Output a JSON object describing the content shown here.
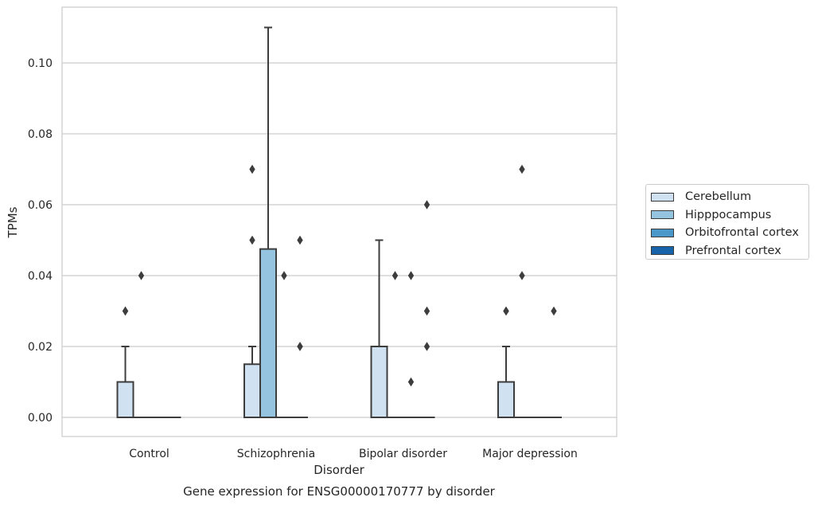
{
  "chart_data": {
    "type": "boxplot",
    "caption": "Gene expression for ENSG00000170777 by disorder",
    "xlabel": "Disorder",
    "ylabel": "TPMs",
    "ylim": [
      -0.005,
      0.116
    ],
    "yticks": [
      "0.00",
      "0.02",
      "0.04",
      "0.06",
      "0.08",
      "0.10"
    ],
    "grid": true,
    "legend_position": "right",
    "categories": [
      "Control",
      "Schizophrenia",
      "Bipolar disorder",
      "Major depression"
    ],
    "series": [
      {
        "name": "Cerebellum",
        "color": "#d0e1f2",
        "boxes": [
          {
            "q1": 0.0,
            "median": 0.0,
            "q3": 0.01,
            "whisker_low": 0.0,
            "whisker_high": 0.02,
            "outliers": [
              0.03,
              0.03
            ]
          },
          {
            "q1": 0.0,
            "median": 0.0,
            "q3": 0.015,
            "whisker_low": 0.0,
            "whisker_high": 0.02,
            "outliers": [
              0.05,
              0.07
            ]
          },
          {
            "q1": 0.0,
            "median": 0.0,
            "q3": 0.02,
            "whisker_low": 0.0,
            "whisker_high": 0.05,
            "outliers": []
          },
          {
            "q1": 0.0,
            "median": 0.0,
            "q3": 0.01,
            "whisker_low": 0.0,
            "whisker_high": 0.02,
            "outliers": [
              0.03,
              0.03
            ]
          }
        ]
      },
      {
        "name": "Hipppocampus",
        "color": "#94c4df",
        "boxes": [
          {
            "q1": 0.0,
            "median": 0.0,
            "q3": 0.0,
            "whisker_low": 0.0,
            "whisker_high": 0.0,
            "outliers": [
              0.04
            ]
          },
          {
            "q1": 0.0,
            "median": 0.0,
            "q3": 0.0475,
            "whisker_low": 0.0,
            "whisker_high": 0.11,
            "outliers": []
          },
          {
            "q1": 0.0,
            "median": 0.0,
            "q3": 0.0,
            "whisker_low": 0.0,
            "whisker_high": 0.0,
            "outliers": [
              0.04
            ]
          },
          {
            "q1": 0.0,
            "median": 0.0,
            "q3": 0.0,
            "whisker_low": 0.0,
            "whisker_high": 0.0,
            "outliers": [
              0.04,
              0.07
            ]
          }
        ]
      },
      {
        "name": "Orbitofrontal cortex",
        "color": "#4a98c9",
        "boxes": [
          {
            "q1": 0.0,
            "median": 0.0,
            "q3": 0.0,
            "whisker_low": 0.0,
            "whisker_high": 0.0,
            "outliers": []
          },
          {
            "q1": 0.0,
            "median": 0.0,
            "q3": 0.0,
            "whisker_low": 0.0,
            "whisker_high": 0.0,
            "outliers": [
              0.04
            ]
          },
          {
            "q1": 0.0,
            "median": 0.0,
            "q3": 0.0,
            "whisker_low": 0.0,
            "whisker_high": 0.0,
            "outliers": [
              0.01,
              0.04
            ]
          },
          {
            "q1": 0.0,
            "median": 0.0,
            "q3": 0.0,
            "whisker_low": 0.0,
            "whisker_high": 0.0,
            "outliers": []
          }
        ]
      },
      {
        "name": "Prefrontal cortex",
        "color": "#1764ab",
        "boxes": [
          {
            "q1": 0.0,
            "median": 0.0,
            "q3": 0.0,
            "whisker_low": 0.0,
            "whisker_high": 0.0,
            "outliers": []
          },
          {
            "q1": 0.0,
            "median": 0.0,
            "q3": 0.0,
            "whisker_low": 0.0,
            "whisker_high": 0.0,
            "outliers": [
              0.02,
              0.02,
              0.05
            ]
          },
          {
            "q1": 0.0,
            "median": 0.0,
            "q3": 0.0,
            "whisker_low": 0.0,
            "whisker_high": 0.0,
            "outliers": [
              0.02,
              0.03,
              0.06
            ]
          },
          {
            "q1": 0.0,
            "median": 0.0,
            "q3": 0.0,
            "whisker_low": 0.0,
            "whisker_high": 0.0,
            "outliers": [
              0.03
            ]
          }
        ]
      }
    ]
  }
}
